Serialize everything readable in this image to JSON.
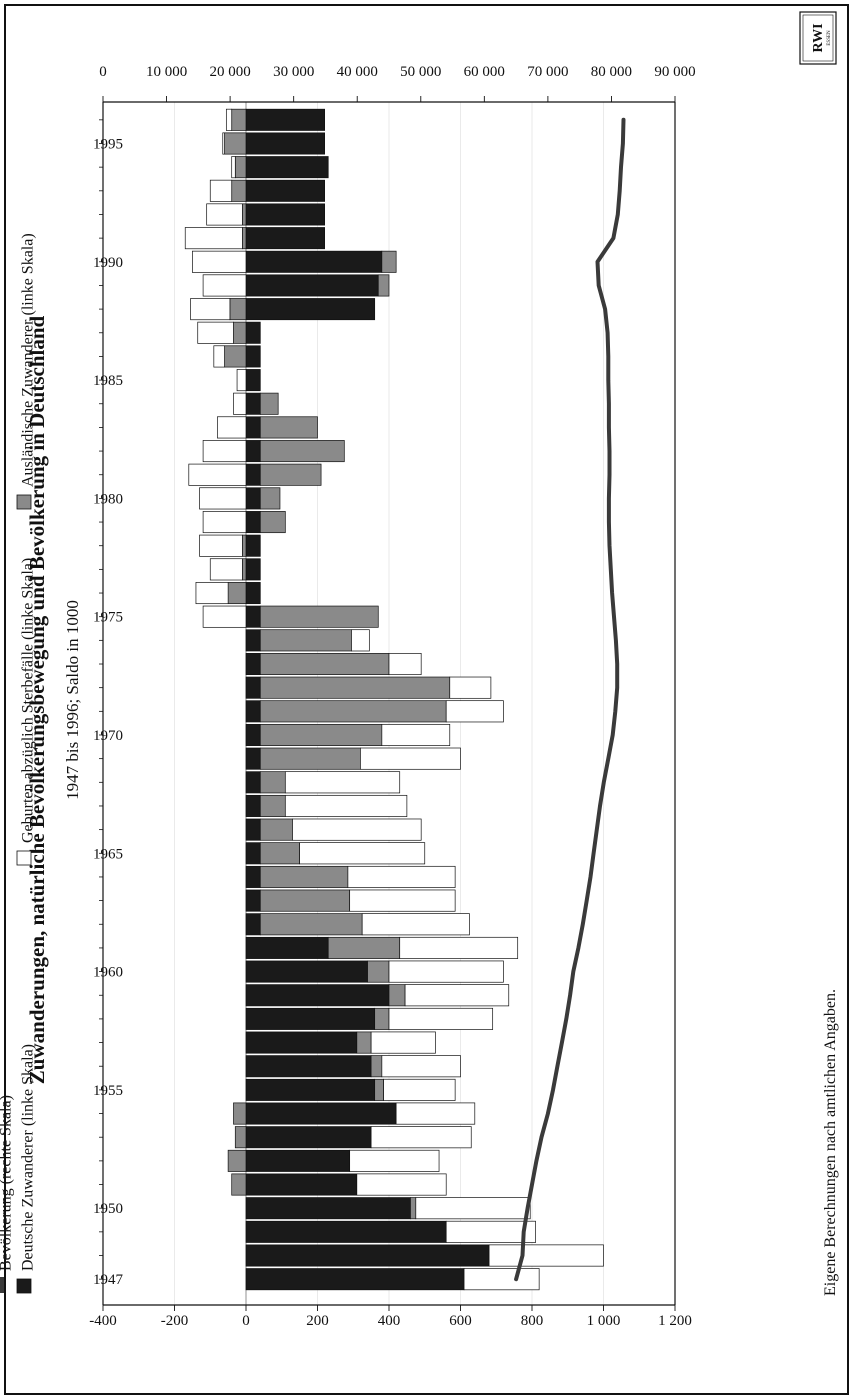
{
  "chart_data": {
    "type": "bar",
    "title": "Zuwanderungen,  natürliche Bevölkerungsbewegung und Bevölkerung in Deutschland",
    "subtitle": "1947 bis 1996; Saldo in 1000",
    "source": "Eigene Berechnungen nach amtlichen Angaben.",
    "logo": {
      "main": "RWI",
      "sub": "ESSEN"
    },
    "left_axis": {
      "range": [
        -400,
        1200
      ],
      "ticks": [
        -400,
        -200,
        0,
        200,
        400,
        600,
        800,
        1000,
        1200
      ],
      "tick_labels": [
        "-400",
        "-200",
        "0",
        "200",
        "400",
        "600",
        "800",
        "1 000",
        "1 200"
      ]
    },
    "right_axis": {
      "range": [
        0,
        90000
      ],
      "ticks": [
        0,
        10000,
        20000,
        30000,
        40000,
        50000,
        60000,
        70000,
        80000,
        90000
      ],
      "tick_labels": [
        "0",
        "10 000",
        "20 000",
        "30 000",
        "40 000",
        "50 000",
        "60 000",
        "70 000",
        "80 000",
        "90 000"
      ]
    },
    "x_tick_labels": [
      "1947",
      "1950",
      "1955",
      "1960",
      "1965",
      "1970",
      "1975",
      "1980",
      "1985",
      "1990",
      "1995"
    ],
    "categories": [
      1947,
      1948,
      1949,
      1950,
      1951,
      1952,
      1953,
      1954,
      1955,
      1956,
      1957,
      1958,
      1959,
      1960,
      1961,
      1962,
      1963,
      1964,
      1965,
      1966,
      1967,
      1968,
      1969,
      1970,
      1971,
      1972,
      1973,
      1974,
      1975,
      1976,
      1977,
      1978,
      1979,
      1980,
      1981,
      1982,
      1983,
      1984,
      1985,
      1986,
      1987,
      1988,
      1989,
      1990,
      1991,
      1992,
      1993,
      1994,
      1995,
      1996
    ],
    "series": [
      {
        "name": "Deutsche Zuwanderer (linke Skala)",
        "color": "#1a1a1a",
        "values": [
          610,
          680,
          560,
          460,
          310,
          290,
          350,
          420,
          360,
          350,
          310,
          360,
          400,
          340,
          230,
          40,
          40,
          40,
          40,
          40,
          40,
          40,
          40,
          40,
          40,
          40,
          40,
          40,
          40,
          40,
          40,
          40,
          40,
          40,
          40,
          40,
          40,
          40,
          40,
          40,
          40,
          360,
          370,
          380,
          220,
          220,
          220,
          230,
          220,
          220
        ]
      },
      {
        "name": "Ausländische Zuwanderer (linke Skala)",
        "color": "#8a8a8a",
        "values": [
          0,
          0,
          0,
          15,
          -40,
          -50,
          -30,
          -35,
          25,
          30,
          40,
          40,
          45,
          60,
          200,
          285,
          250,
          245,
          110,
          90,
          70,
          70,
          280,
          340,
          520,
          530,
          360,
          255,
          330,
          -50,
          -10,
          -10,
          70,
          55,
          170,
          235,
          160,
          50,
          0,
          -60,
          -35,
          -45,
          30,
          40,
          -10,
          -10,
          -40,
          -30,
          -60,
          -40
        ]
      },
      {
        "name": "Geburten abzüglich Sterbefälle (linke Skala)",
        "color": "#ffffff",
        "values": [
          210,
          320,
          250,
          320,
          250,
          250,
          280,
          220,
          200,
          220,
          180,
          290,
          290,
          320,
          330,
          300,
          295,
          300,
          350,
          360,
          340,
          320,
          280,
          190,
          160,
          115,
          90,
          50,
          -120,
          -90,
          -90,
          -120,
          -120,
          -130,
          -160,
          -120,
          -80,
          -35,
          -25,
          -30,
          -100,
          -110,
          -120,
          -150,
          -160,
          -100,
          -60,
          -10,
          -5,
          -15
        ]
      },
      {
        "name": "Bevölkerung (rechte Skala)",
        "color": "#3a3a3a",
        "type": "line",
        "values": [
          65000,
          66000,
          66200,
          66800,
          67500,
          68200,
          69000,
          70000,
          70800,
          71500,
          72200,
          72900,
          73500,
          74000,
          74800,
          75500,
          76100,
          76700,
          77200,
          77700,
          78200,
          78800,
          79500,
          80200,
          80600,
          80900,
          80900,
          80700,
          80400,
          80100,
          79900,
          79700,
          79600,
          79600,
          79700,
          79700,
          79600,
          79600,
          79500,
          79500,
          79400,
          79000,
          78000,
          77800,
          80300,
          81000,
          81300,
          81500,
          81800,
          81900
        ]
      }
    ],
    "legend": {
      "placement": "bottom",
      "items": [
        "Deutsche Zuwanderer (linke Skala)",
        "Bevölkerung (rechte Skala)",
        "Geburten abzüglich Sterbefälle (linke Skala)",
        "Ausländische Zuwanderer (linke Skala)"
      ]
    },
    "orientation": "rotated 90° counter-clockwise"
  }
}
